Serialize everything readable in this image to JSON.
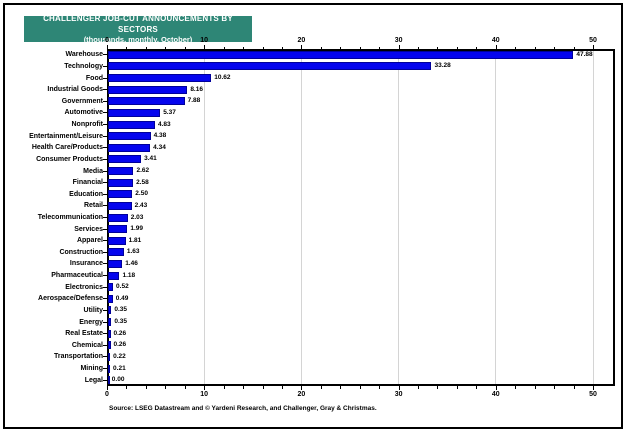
{
  "title": {
    "line1": "CHALLENGER JOB-CUT ANNOUNCEMENTS BY SECTORS",
    "line2": "(thousands, monthly, October)"
  },
  "source": "Source: LSEG Datastream and © Yardeni Research, and Challenger, Gray & Christmas.",
  "colors": {
    "title_bg": "#2e8676",
    "bar": "#0505ee",
    "grid": "#d4d4d4",
    "frame": "#000000"
  },
  "chart_data": {
    "type": "bar",
    "orientation": "horizontal",
    "title": "CHALLENGER JOB-CUT ANNOUNCEMENTS BY SECTORS",
    "subtitle": "(thousands, monthly, October)",
    "categories": [
      "Warehouse",
      "Technology",
      "Food",
      "Industrial Goods",
      "Government",
      "Automotive",
      "Nonprofit",
      "Entertainment/Leisure",
      "Health Care/Products",
      "Consumer Products",
      "Media",
      "Financial",
      "Education",
      "Retail",
      "Telecommunication",
      "Services",
      "Apparel",
      "Construction",
      "Insurance",
      "Pharmaceutical",
      "Electronics",
      "Aerospace/Defense",
      "Utility",
      "Energy",
      "Real Estate",
      "Chemical",
      "Transportation",
      "Mining",
      "Legal"
    ],
    "values": [
      47.88,
      33.28,
      10.62,
      8.16,
      7.88,
      5.37,
      4.83,
      4.38,
      4.34,
      3.41,
      2.62,
      2.58,
      2.5,
      2.43,
      2.03,
      1.99,
      1.81,
      1.63,
      1.46,
      1.18,
      0.52,
      0.49,
      0.35,
      0.35,
      0.26,
      0.26,
      0.22,
      0.21,
      0.0
    ],
    "value_labels": [
      "47.88",
      "33.28",
      "10.62",
      "8.16",
      "7.88",
      "5.37",
      "4.83",
      "4.38",
      "4.34",
      "3.41",
      "2.62",
      "2.58",
      "2.50",
      "2.43",
      "2.03",
      "1.99",
      "1.81",
      "1.63",
      "1.46",
      "1.18",
      "0.52",
      "0.49",
      "0.35",
      "0.35",
      "0.26",
      "0.26",
      "0.22",
      "0.21",
      "0.00"
    ],
    "xlim": [
      0,
      52
    ],
    "x_ticks": [
      0,
      10,
      20,
      30,
      40,
      50
    ],
    "minor_tick_step": 2,
    "grid": "vertical gridlines at major ticks, light gray",
    "legend": "none",
    "axis_label_positions": "ticks and numeric labels on both top and bottom axes"
  }
}
